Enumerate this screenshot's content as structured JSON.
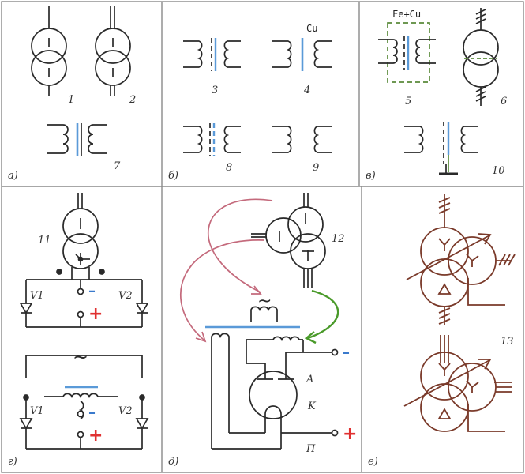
{
  "colors": {
    "ink": "#2a2a2a",
    "border": "#8a8a8a",
    "core_blue": "#5a9ad8",
    "frame_green": "#5a8a3a",
    "arrow_pink": "#c46a7c",
    "arrow_green": "#4a9a2a",
    "brown": "#7a3a2a",
    "plus_red": "#e03030",
    "minus_blue": "#3a7acc"
  },
  "panels": {
    "a": {
      "label": "а)",
      "items": [
        {
          "num": "1",
          "type": "two-winding-circles"
        },
        {
          "num": "2",
          "type": "two-winding-circles-double-line"
        },
        {
          "num": "7",
          "type": "coils-blue-core"
        }
      ]
    },
    "b": {
      "label": "б)",
      "items": [
        {
          "num": "3",
          "type": "coils-dashed-core"
        },
        {
          "num": "4",
          "type": "coils-solid-core",
          "material": "Cu"
        },
        {
          "num": "8",
          "type": "coils-dashed-double-core"
        },
        {
          "num": "9",
          "type": "coils-no-core"
        }
      ]
    },
    "v": {
      "label": "в)",
      "items": [
        {
          "num": "5",
          "type": "coils-framed",
          "material": "Fe+Cu"
        },
        {
          "num": "6",
          "type": "circles-dashed-screen"
        },
        {
          "num": "10",
          "type": "coils-grounded"
        }
      ]
    },
    "g": {
      "label": "г)",
      "items": [
        {
          "num": "11",
          "type": "rectifier-circles"
        },
        {
          "num": "",
          "type": "rectifier-coils"
        }
      ],
      "diodes": [
        "V1",
        "V2"
      ],
      "minus": "–",
      "plus": "+",
      "ac_symbol": "~"
    },
    "d": {
      "label": "д)",
      "items": [
        {
          "num": "12",
          "type": "three-winding-circles"
        }
      ],
      "tube_labels": {
        "anode": "A",
        "cathode": "K",
        "power": "П"
      },
      "minus": "–",
      "plus": "+",
      "ac_symbol": "~"
    },
    "e": {
      "label": "е)",
      "items": [
        {
          "num": "13",
          "type": "three-phase-autotransformer"
        }
      ]
    }
  }
}
